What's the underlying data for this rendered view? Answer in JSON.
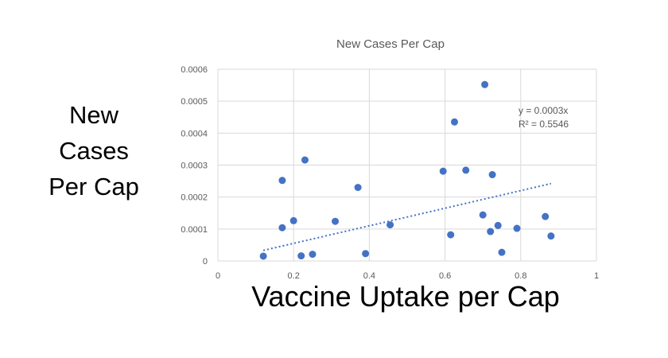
{
  "chart_data": {
    "type": "scatter",
    "title": "New Cases Per Cap",
    "ylabel": "New Cases Per Cap",
    "xlabel": "Vaccine Uptake per Cap",
    "xlim": [
      0,
      1
    ],
    "ylim": [
      0,
      0.0006
    ],
    "x_ticks": [
      "0",
      "0.2",
      "0.4",
      "0.6",
      "0.8",
      "1"
    ],
    "y_ticks": [
      "0",
      "0.0001",
      "0.0002",
      "0.0003",
      "0.0004",
      "0.0005",
      "0.0006"
    ],
    "grid": true,
    "series": [
      {
        "color": "#4472C4",
        "points": [
          {
            "x": 0.12,
            "y": 1.5e-05
          },
          {
            "x": 0.17,
            "y": 0.000252
          },
          {
            "x": 0.17,
            "y": 0.000104
          },
          {
            "x": 0.2,
            "y": 0.000126
          },
          {
            "x": 0.22,
            "y": 1.6e-05
          },
          {
            "x": 0.23,
            "y": 0.000316
          },
          {
            "x": 0.25,
            "y": 2.1e-05
          },
          {
            "x": 0.31,
            "y": 0.000124
          },
          {
            "x": 0.37,
            "y": 0.00023
          },
          {
            "x": 0.39,
            "y": 2.3e-05
          },
          {
            "x": 0.455,
            "y": 0.000113
          },
          {
            "x": 0.595,
            "y": 0.000281
          },
          {
            "x": 0.615,
            "y": 8.2e-05
          },
          {
            "x": 0.625,
            "y": 0.000435
          },
          {
            "x": 0.655,
            "y": 0.000284
          },
          {
            "x": 0.7,
            "y": 0.000144
          },
          {
            "x": 0.705,
            "y": 0.000552
          },
          {
            "x": 0.72,
            "y": 9.2e-05
          },
          {
            "x": 0.725,
            "y": 0.00027
          },
          {
            "x": 0.74,
            "y": 0.000111
          },
          {
            "x": 0.75,
            "y": 2.7e-05
          },
          {
            "x": 0.79,
            "y": 0.000102
          },
          {
            "x": 0.865,
            "y": 0.000139
          },
          {
            "x": 0.88,
            "y": 7.8e-05
          }
        ]
      }
    ],
    "trendline": {
      "style": "dotted",
      "color": "#4472C4",
      "slope": 0.000275,
      "x_range": [
        0.12,
        0.88
      ],
      "equation": "y = 0.0003x",
      "r2_label": "R² = 0.5546"
    }
  }
}
